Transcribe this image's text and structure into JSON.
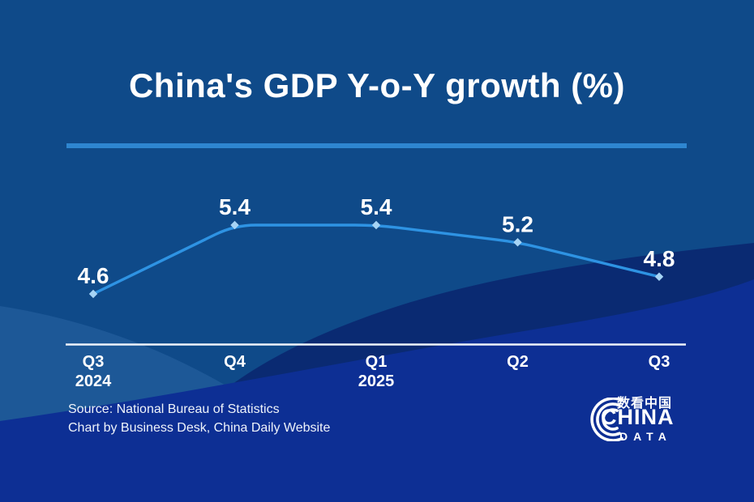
{
  "page": {
    "title": "China's GDP Y-o-Y growth (%)"
  },
  "chart_data": {
    "type": "line",
    "title": "China's GDP Y-o-Y growth (%)",
    "categories": [
      "Q3 2024",
      "Q4 2024",
      "Q1 2025",
      "Q2 2025",
      "Q3 2025"
    ],
    "values": [
      4.6,
      5.4,
      5.4,
      5.2,
      4.8
    ],
    "x_tick_labels": [
      {
        "label": "Q3",
        "sublabel": "2024"
      },
      {
        "label": "Q4",
        "sublabel": ""
      },
      {
        "label": "Q1",
        "sublabel": "2025"
      },
      {
        "label": "Q2",
        "sublabel": ""
      },
      {
        "label": "Q3",
        "sublabel": ""
      }
    ],
    "xlabel": "",
    "ylabel": "",
    "data_labels_shown": true,
    "grid": false,
    "legend": false
  },
  "footer": {
    "source_line1": "Source: National Bureau of Statistics",
    "source_line2": "Chart by Business Desk, China Daily Website"
  },
  "logo": {
    "chinese_text": "数看中国",
    "primary_text": "CHINA",
    "secondary_text": "DATA"
  },
  "colors": {
    "background_base": "#0f4a89",
    "wave_light": "#3a74b2",
    "wave_navy": "#0a2a72",
    "wave_royal": "#0d2f94",
    "divider": "#2e86d0",
    "axis": "#eef3fa",
    "line": "#2e93e3",
    "marker": "#a6d4f5",
    "text": "#ffffff"
  }
}
